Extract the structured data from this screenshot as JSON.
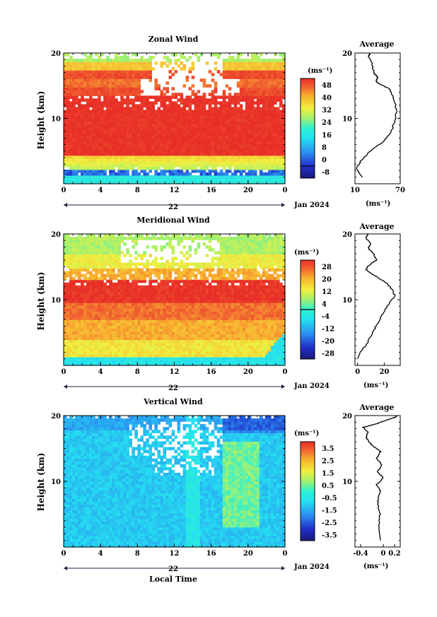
{
  "chart_data": [
    {
      "type": "heatmap",
      "title": "Zonal Wind",
      "ylabel": "Height (km)",
      "xticks": [
        "0",
        "4",
        "8",
        "12",
        "16",
        "20",
        "0"
      ],
      "yticks": [
        "10",
        "20"
      ],
      "date_tick": "22",
      "date_label": "Jan 2024",
      "colorbar_unit": "(ms⁻¹)",
      "colorbar_ticks": [
        "48",
        "40",
        "32",
        "24",
        "16",
        "8",
        "0",
        "-8"
      ],
      "profile_title": "Average",
      "profile_xticks": [
        "10",
        "70"
      ],
      "profile_yticks": [
        "10",
        "20"
      ],
      "profile_xlabel": "(ms⁻¹)",
      "profile_x_range": [
        10,
        70
      ],
      "profile_points": [
        [
          20,
          1
        ],
        [
          16,
          1.5
        ],
        [
          12,
          2.5
        ],
        [
          18,
          3.5
        ],
        [
          30,
          5
        ],
        [
          48,
          6.5
        ],
        [
          58,
          8
        ],
        [
          63,
          9.5
        ],
        [
          65,
          11
        ],
        [
          63,
          12.5
        ],
        [
          60,
          13.5
        ],
        [
          56,
          14.5
        ],
        [
          44,
          15.2
        ],
        [
          38,
          15.6
        ],
        [
          40,
          16.3
        ],
        [
          36,
          16.8
        ],
        [
          34,
          17.5
        ],
        [
          32,
          18.5
        ],
        [
          28,
          19.5
        ],
        [
          30,
          20
        ]
      ],
      "colorscale_note": "jet-like: white gaps where no data"
    },
    {
      "type": "heatmap",
      "title": "Meridional Wind",
      "ylabel": "Height (km)",
      "xticks": [
        "0",
        "4",
        "8",
        "12",
        "16",
        "20",
        "0"
      ],
      "yticks": [
        "10",
        "20"
      ],
      "date_tick": "22",
      "date_label": "Jan 2024",
      "colorbar_unit": "(ms⁻¹)",
      "colorbar_ticks": [
        "28",
        "20",
        "12",
        "4",
        "-4",
        "-12",
        "-20",
        "-28"
      ],
      "profile_title": "Average",
      "profile_xticks": [
        "0",
        "20"
      ],
      "profile_yticks": [
        "10",
        "20"
      ],
      "profile_xlabel": "(ms⁻¹)",
      "profile_x_range": [
        -2,
        32
      ],
      "profile_points": [
        [
          0,
          1
        ],
        [
          2,
          2
        ],
        [
          6,
          3
        ],
        [
          10,
          4.5
        ],
        [
          14,
          6
        ],
        [
          18,
          7.5
        ],
        [
          22,
          9
        ],
        [
          28,
          10.5
        ],
        [
          26,
          11.5
        ],
        [
          22,
          12.5
        ],
        [
          14,
          13.5
        ],
        [
          10,
          14
        ],
        [
          6,
          14.6
        ],
        [
          10,
          15.5
        ],
        [
          14,
          16
        ],
        [
          12,
          17
        ],
        [
          8,
          17.8
        ],
        [
          10,
          18.6
        ],
        [
          6,
          19.4
        ],
        [
          8,
          20
        ]
      ],
      "colorscale_note": "jet-like: white gaps where no data"
    },
    {
      "type": "heatmap",
      "title": "Vertical Wind",
      "ylabel": "Height (km)",
      "xlabel": "Local Time",
      "xticks": [
        "0",
        "4",
        "8",
        "12",
        "16",
        "20",
        "0"
      ],
      "yticks": [
        "10",
        "20"
      ],
      "date_tick": "22",
      "date_label": "Jan 2024",
      "colorbar_unit": "(ms⁻¹)",
      "colorbar_ticks": [
        "3.5",
        "2.5",
        "1.5",
        "0.5",
        "-0.5",
        "-1.5",
        "-2.5",
        "-3.5"
      ],
      "profile_title": "Average",
      "profile_xticks": [
        "-0.4",
        "0",
        "0.2"
      ],
      "profile_yticks": [
        "10",
        "20"
      ],
      "profile_xlabel": "(ms⁻¹)",
      "profile_x_range": [
        -0.5,
        0.3
      ],
      "profile_points": [
        [
          -0.05,
          1
        ],
        [
          -0.08,
          3
        ],
        [
          -0.06,
          5
        ],
        [
          -0.1,
          7
        ],
        [
          -0.05,
          8.5
        ],
        [
          -0.12,
          9.5
        ],
        [
          0.0,
          10.5
        ],
        [
          -0.1,
          11.5
        ],
        [
          -0.02,
          12.5
        ],
        [
          -0.12,
          13.5
        ],
        [
          -0.05,
          14.5
        ],
        [
          -0.2,
          15.5
        ],
        [
          -0.3,
          16.5
        ],
        [
          -0.28,
          17.5
        ],
        [
          -0.35,
          18.2
        ],
        [
          -0.1,
          18.8
        ],
        [
          0.05,
          19.3
        ],
        [
          0.2,
          19.7
        ],
        [
          0.25,
          20
        ]
      ],
      "colorscale_note": "jet-like: white gaps where no data"
    }
  ]
}
